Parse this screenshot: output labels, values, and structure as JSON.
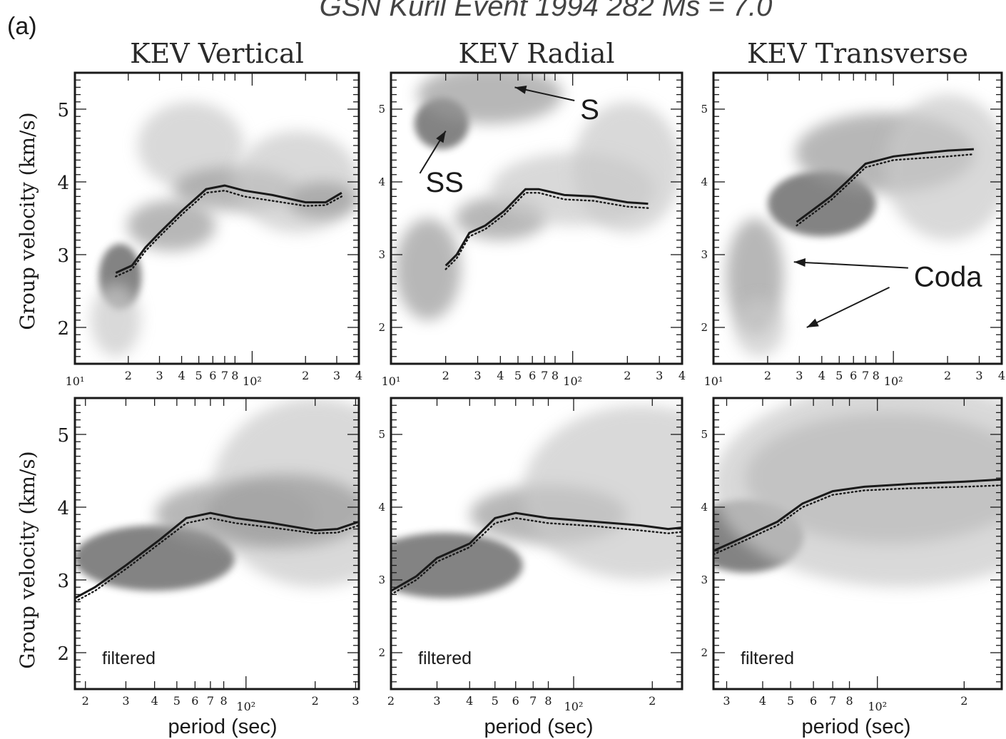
{
  "figure": {
    "label": "(a)",
    "title": "GSN    Kuril Event 1994 282  Ms = 7.0",
    "ylabel": "Group velocity (km/s)",
    "xlabel": "period (sec)"
  },
  "colors": {
    "ink": "#1a1a1a",
    "shade_light": "#c9c9c9",
    "shade_mid": "#9a9a9a",
    "shade_dark": "#5a5a5a",
    "background": "#ffffff"
  },
  "chart_data": [
    {
      "type": "heatmap",
      "row": "top",
      "col": 0,
      "title": "KEV Vertical",
      "x_scale": "log",
      "xlim": [
        10,
        400
      ],
      "ylim": [
        1.5,
        5.5
      ],
      "x_ticks": [
        "10¹",
        "2",
        "3",
        "4",
        "5",
        "6",
        "7",
        "8",
        "10²",
        "2",
        "3",
        "4"
      ],
      "y_ticks": [
        "2",
        "3",
        "4",
        "5"
      ],
      "series": [
        {
          "style": "solid",
          "x": [
            17,
            21,
            25,
            30,
            40,
            55,
            70,
            90,
            130,
            200,
            260,
            320
          ],
          "y": [
            2.75,
            2.85,
            3.1,
            3.3,
            3.6,
            3.9,
            3.95,
            3.88,
            3.82,
            3.72,
            3.72,
            3.85
          ]
        },
        {
          "style": "dotted",
          "x": [
            17,
            21,
            25,
            30,
            40,
            55,
            70,
            90,
            130,
            200,
            260,
            320
          ],
          "y": [
            2.7,
            2.8,
            3.05,
            3.25,
            3.55,
            3.85,
            3.88,
            3.8,
            3.74,
            3.67,
            3.68,
            3.8
          ]
        }
      ],
      "blobs": [
        {
          "x": 18,
          "y": 2.7,
          "rx": 0.12,
          "ry": 0.45,
          "level": 3
        },
        {
          "x": 17,
          "y": 2.1,
          "rx": 0.14,
          "ry": 0.5,
          "level": 1
        },
        {
          "x": 35,
          "y": 3.4,
          "rx": 0.25,
          "ry": 0.35,
          "level": 2
        },
        {
          "x": 45,
          "y": 4.5,
          "rx": 0.3,
          "ry": 0.6,
          "level": 1
        },
        {
          "x": 80,
          "y": 3.9,
          "rx": 0.35,
          "ry": 0.3,
          "level": 2
        },
        {
          "x": 180,
          "y": 4.0,
          "rx": 0.35,
          "ry": 0.7,
          "level": 1
        },
        {
          "x": 250,
          "y": 3.75,
          "rx": 0.2,
          "ry": 0.25,
          "level": 2
        }
      ],
      "annotations": []
    },
    {
      "type": "heatmap",
      "row": "top",
      "col": 1,
      "title": "KEV Radial",
      "x_scale": "log",
      "xlim": [
        10,
        400
      ],
      "ylim": [
        1.5,
        5.5
      ],
      "x_ticks": [
        "10¹",
        "2",
        "3",
        "4",
        "5",
        "6",
        "7",
        "8",
        "10²",
        "2",
        "3",
        "4"
      ],
      "y_ticks": [
        "2",
        "3",
        "4",
        "5"
      ],
      "series": [
        {
          "style": "solid",
          "x": [
            20,
            23,
            27,
            33,
            42,
            55,
            65,
            90,
            130,
            200,
            260
          ],
          "y": [
            2.85,
            3.0,
            3.3,
            3.4,
            3.6,
            3.9,
            3.9,
            3.82,
            3.8,
            3.72,
            3.7
          ]
        },
        {
          "style": "dotted",
          "x": [
            20,
            23,
            27,
            33,
            42,
            55,
            65,
            90,
            130,
            200,
            260
          ],
          "y": [
            2.8,
            2.95,
            3.25,
            3.35,
            3.55,
            3.85,
            3.85,
            3.76,
            3.74,
            3.66,
            3.64
          ]
        }
      ],
      "blobs": [
        {
          "x": 16,
          "y": 2.8,
          "rx": 0.18,
          "ry": 0.7,
          "level": 2
        },
        {
          "x": 19,
          "y": 4.8,
          "rx": 0.15,
          "ry": 0.35,
          "level": 3
        },
        {
          "x": 35,
          "y": 5.2,
          "rx": 0.4,
          "ry": 0.4,
          "level": 2
        },
        {
          "x": 40,
          "y": 3.5,
          "rx": 0.25,
          "ry": 0.3,
          "level": 2
        },
        {
          "x": 100,
          "y": 3.9,
          "rx": 0.45,
          "ry": 0.5,
          "level": 1
        },
        {
          "x": 200,
          "y": 4.2,
          "rx": 0.3,
          "ry": 0.9,
          "level": 1
        }
      ],
      "annotations": [
        {
          "text": "S",
          "x": 110,
          "y": 5.0,
          "arrow_to": [
            48,
            5.3
          ]
        },
        {
          "text": "SS",
          "x": 15.5,
          "y": 4.0,
          "arrow_to": [
            20,
            4.7
          ]
        }
      ]
    },
    {
      "type": "heatmap",
      "row": "top",
      "col": 2,
      "title": "KEV Transverse",
      "x_scale": "log",
      "xlim": [
        10,
        400
      ],
      "ylim": [
        1.5,
        5.5
      ],
      "x_ticks": [
        "10¹",
        "2",
        "3",
        "4",
        "5",
        "6",
        "7",
        "8",
        "10²",
        "2",
        "3",
        "4"
      ],
      "y_ticks": [
        "2",
        "3",
        "4",
        "5"
      ],
      "series": [
        {
          "style": "solid",
          "x": [
            29,
            35,
            45,
            55,
            70,
            100,
            150,
            200,
            280
          ],
          "y": [
            3.45,
            3.6,
            3.8,
            4.0,
            4.25,
            4.35,
            4.4,
            4.43,
            4.45
          ]
        },
        {
          "style": "dotted",
          "x": [
            29,
            35,
            45,
            55,
            70,
            100,
            150,
            200,
            280
          ],
          "y": [
            3.4,
            3.55,
            3.75,
            3.95,
            4.2,
            4.3,
            4.33,
            4.35,
            4.38
          ]
        }
      ],
      "blobs": [
        {
          "x": 17,
          "y": 2.7,
          "rx": 0.16,
          "ry": 0.8,
          "level": 2
        },
        {
          "x": 18,
          "y": 2.0,
          "rx": 0.14,
          "ry": 0.4,
          "level": 1
        },
        {
          "x": 40,
          "y": 3.7,
          "rx": 0.3,
          "ry": 0.45,
          "level": 3
        },
        {
          "x": 90,
          "y": 4.4,
          "rx": 0.5,
          "ry": 0.55,
          "level": 2
        },
        {
          "x": 200,
          "y": 4.2,
          "rx": 0.35,
          "ry": 1.0,
          "level": 1
        }
      ],
      "annotations": [
        {
          "text": "Coda",
          "x": 130,
          "y": 2.7,
          "arrow_to": [
            28,
            2.9
          ]
        },
        {
          "text": "",
          "x": 95,
          "y": 2.55,
          "arrow_to": [
            33,
            2.0
          ]
        }
      ]
    },
    {
      "type": "heatmap",
      "row": "bottom",
      "col": 0,
      "title": "",
      "x_scale": "log",
      "xlim": [
        18,
        310
      ],
      "ylim": [
        1.5,
        5.5
      ],
      "x_ticks": [
        "2",
        "3",
        "4",
        "5",
        "6",
        "7",
        "8",
        "10²",
        "2",
        "3"
      ],
      "y_ticks": [
        "2",
        "3",
        "4",
        "5"
      ],
      "label": "filtered",
      "series": [
        {
          "style": "solid",
          "x": [
            18,
            22,
            30,
            42,
            55,
            70,
            90,
            130,
            200,
            250,
            310
          ],
          "y": [
            2.75,
            2.9,
            3.2,
            3.55,
            3.85,
            3.92,
            3.85,
            3.78,
            3.68,
            3.7,
            3.8
          ]
        },
        {
          "style": "dotted",
          "x": [
            18,
            22,
            30,
            42,
            55,
            70,
            90,
            130,
            200,
            250,
            310
          ],
          "y": [
            2.7,
            2.85,
            3.15,
            3.5,
            3.78,
            3.85,
            3.78,
            3.72,
            3.64,
            3.65,
            3.75
          ]
        }
      ],
      "blobs": [
        {
          "x": 40,
          "y": 3.3,
          "rx": 0.35,
          "ry": 0.45,
          "level": 3
        },
        {
          "x": 90,
          "y": 3.9,
          "rx": 0.35,
          "ry": 0.45,
          "level": 2
        },
        {
          "x": 200,
          "y": 4.2,
          "rx": 0.45,
          "ry": 1.3,
          "level": 1
        },
        {
          "x": 150,
          "y": 3.95,
          "rx": 0.35,
          "ry": 0.5,
          "level": 2
        }
      ],
      "annotations": []
    },
    {
      "type": "heatmap",
      "row": "bottom",
      "col": 1,
      "title": "",
      "x_scale": "log",
      "xlim": [
        20,
        260
      ],
      "ylim": [
        1.5,
        5.5
      ],
      "x_ticks": [
        "2",
        "3",
        "4",
        "5",
        "6",
        "7",
        "8",
        "10²",
        "2"
      ],
      "y_ticks": [
        "2",
        "3",
        "4",
        "5"
      ],
      "label": "filtered",
      "series": [
        {
          "style": "solid",
          "x": [
            20,
            25,
            30,
            40,
            50,
            60,
            80,
            120,
            180,
            230,
            260
          ],
          "y": [
            2.85,
            3.05,
            3.3,
            3.5,
            3.85,
            3.92,
            3.85,
            3.8,
            3.75,
            3.7,
            3.72
          ]
        },
        {
          "style": "dotted",
          "x": [
            20,
            25,
            30,
            40,
            50,
            60,
            80,
            120,
            180,
            230,
            260
          ],
          "y": [
            2.8,
            3.0,
            3.25,
            3.45,
            3.78,
            3.85,
            3.78,
            3.74,
            3.68,
            3.64,
            3.66
          ]
        }
      ],
      "blobs": [
        {
          "x": 32,
          "y": 3.2,
          "rx": 0.3,
          "ry": 0.45,
          "level": 3
        },
        {
          "x": 80,
          "y": 3.9,
          "rx": 0.3,
          "ry": 0.4,
          "level": 2
        },
        {
          "x": 180,
          "y": 4.2,
          "rx": 0.45,
          "ry": 1.2,
          "level": 1
        }
      ],
      "annotations": []
    },
    {
      "type": "heatmap",
      "row": "bottom",
      "col": 2,
      "title": "",
      "x_scale": "log",
      "xlim": [
        27,
        270
      ],
      "ylim": [
        1.5,
        5.5
      ],
      "x_ticks": [
        "3",
        "4",
        "5",
        "6",
        "7",
        "8",
        "10²",
        "2"
      ],
      "y_ticks": [
        "2",
        "3",
        "4",
        "5"
      ],
      "label": "filtered",
      "series": [
        {
          "style": "solid",
          "x": [
            27,
            35,
            45,
            55,
            70,
            90,
            130,
            200,
            270
          ],
          "y": [
            3.4,
            3.6,
            3.8,
            4.05,
            4.22,
            4.28,
            4.32,
            4.35,
            4.38
          ]
        },
        {
          "style": "dotted",
          "x": [
            27,
            35,
            45,
            55,
            70,
            90,
            130,
            200,
            270
          ],
          "y": [
            3.35,
            3.55,
            3.75,
            4.0,
            4.17,
            4.23,
            4.26,
            4.28,
            4.3
          ]
        }
      ],
      "blobs": [
        {
          "x": 35,
          "y": 3.6,
          "rx": 0.2,
          "ry": 0.5,
          "level": 3
        },
        {
          "x": 110,
          "y": 4.4,
          "rx": 0.5,
          "ry": 0.9,
          "level": 2
        },
        {
          "x": 120,
          "y": 4.3,
          "rx": 0.65,
          "ry": 1.4,
          "level": 1
        }
      ],
      "annotations": []
    }
  ]
}
